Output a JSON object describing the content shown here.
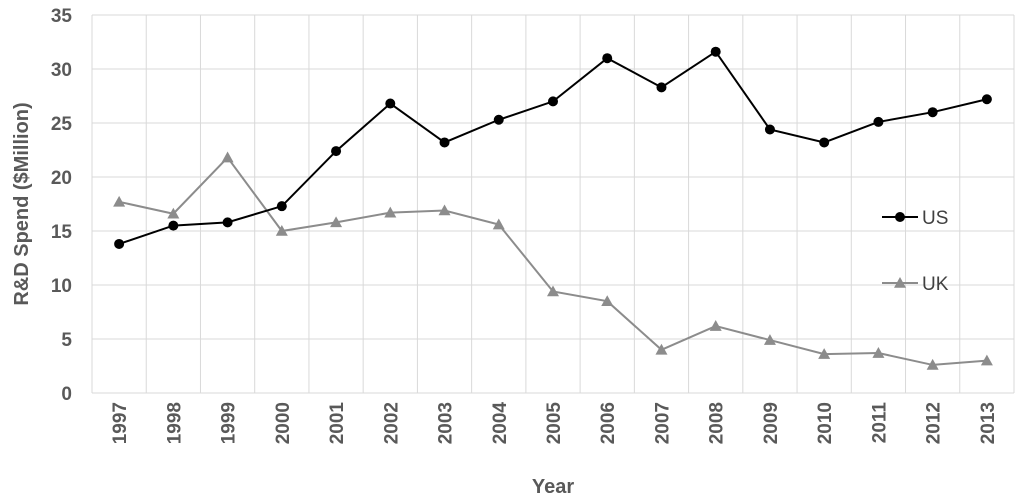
{
  "chart_data": {
    "type": "line",
    "title": "",
    "xlabel": "Year",
    "ylabel": "R&D Spend ($Million)",
    "categories": [
      "1997",
      "1998",
      "1999",
      "2000",
      "2001",
      "2002",
      "2003",
      "2004",
      "2005",
      "2006",
      "2007",
      "2008",
      "2009",
      "2010",
      "2011",
      "2012",
      "2013"
    ],
    "ylim": [
      0,
      35
    ],
    "yticks": [
      0,
      5,
      10,
      15,
      20,
      25,
      30,
      35
    ],
    "grid": true,
    "legend_position": "right",
    "series": [
      {
        "name": "US",
        "marker": "circle",
        "color": "#000000",
        "values": [
          13.8,
          15.5,
          15.8,
          17.3,
          22.4,
          26.8,
          23.2,
          25.3,
          27.0,
          31.0,
          28.3,
          31.6,
          24.4,
          23.2,
          25.1,
          26.0,
          27.2
        ]
      },
      {
        "name": "UK",
        "marker": "triangle",
        "color": "#8c8c8c",
        "values": [
          17.7,
          16.6,
          21.8,
          15.0,
          15.8,
          16.7,
          16.9,
          15.6,
          9.4,
          8.5,
          4.0,
          6.2,
          4.9,
          3.6,
          3.7,
          2.6,
          3.0
        ]
      }
    ]
  }
}
